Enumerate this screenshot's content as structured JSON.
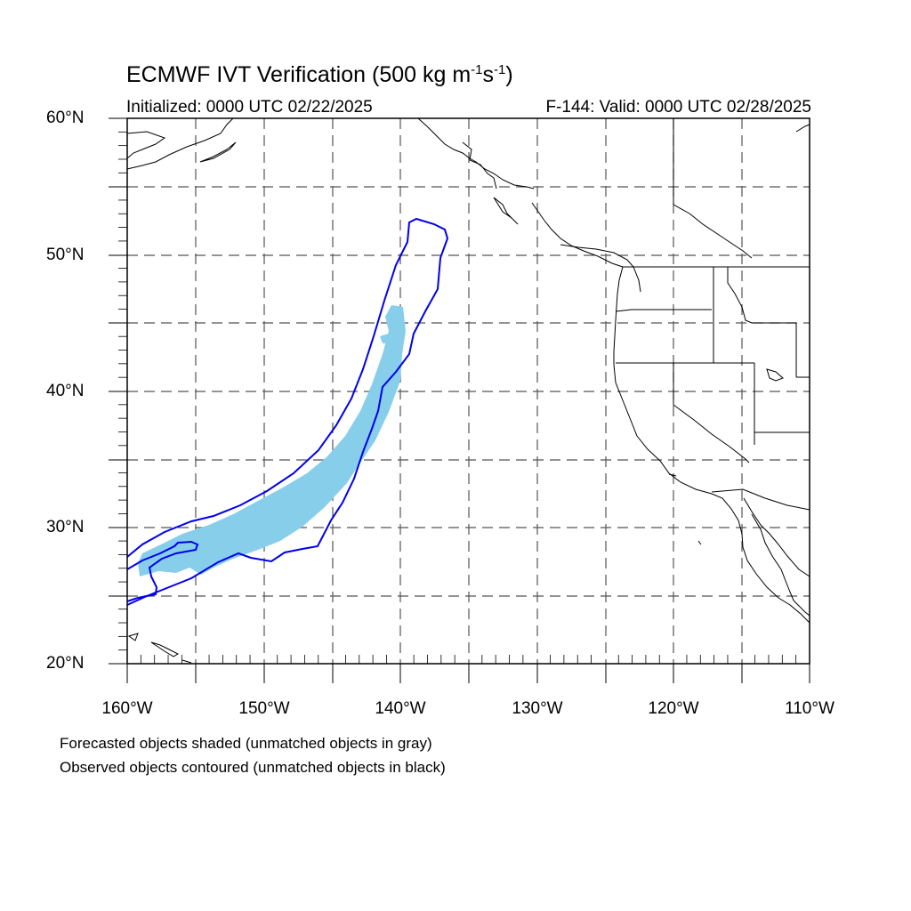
{
  "header": {
    "title_prefix": "ECMWF IVT Verification (500 kg m",
    "title_exp1": "-1",
    "title_mid": "s",
    "title_exp2": "-1",
    "title_suffix": ")",
    "initialized": "Initialized: 0000 UTC 02/22/2025",
    "valid": "F-144: Valid: 0000 UTC 02/28/2025"
  },
  "axes": {
    "lat_labels": [
      "60°N",
      "50°N",
      "40°N",
      "30°N",
      "20°N"
    ],
    "lon_labels": [
      "160°W",
      "150°W",
      "140°W",
      "130°W",
      "120°W",
      "110°W"
    ]
  },
  "notes": {
    "forecast": "Forecasted objects shaded (unmatched objects in gray)",
    "observed": "Observed objects contoured (unmatched objects in black)"
  },
  "colors": {
    "forecast_fill": "#87ceeb",
    "observed_contour": "#0000ee",
    "coastline": "#000000",
    "grid": "#555555"
  }
}
